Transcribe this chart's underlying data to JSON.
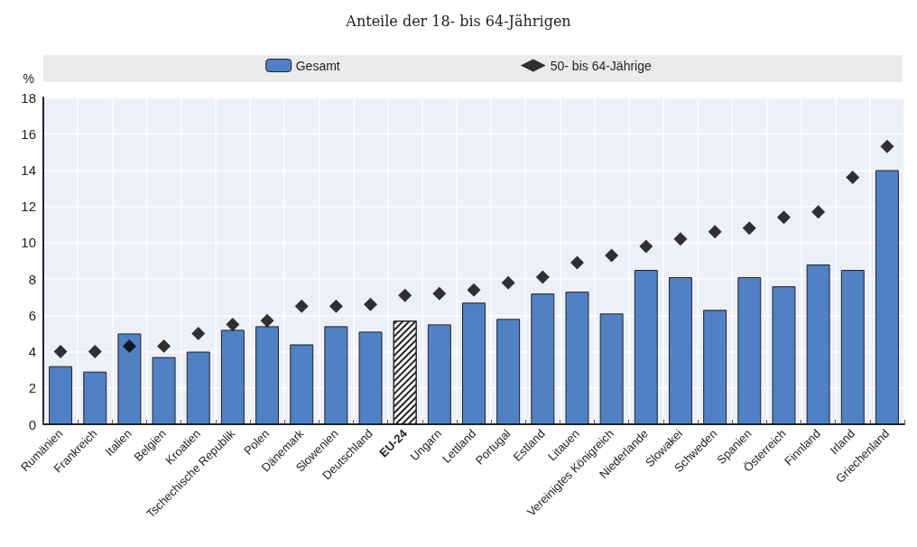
{
  "chart_data": {
    "type": "bar",
    "title": "Anteile der 18- bis 64-Jährigen",
    "ylabel": "%",
    "categories": [
      "Rumänien",
      "Frankreich",
      "Italien",
      "Belgien",
      "Kroatien",
      "Tschechische Republik",
      "Polen",
      "Dänemark",
      "Slowenien",
      "Deutschland",
      "EU-24",
      "Ungarn",
      "Lettland",
      "Portugal",
      "Estland",
      "Litauen",
      "Vereinigtes Königreich",
      "Niederlande",
      "Slowakei",
      "Schweden",
      "Spanien",
      "Österreich",
      "Finnland",
      "Irland",
      "Griechenland"
    ],
    "series": [
      {
        "name": "Gesamt",
        "color": "#4f81c4",
        "colors": [
          "#4f81c4",
          "#4f81c4",
          "#4f81c4",
          "#4f81c4",
          "#4f81c4",
          "#4f81c4",
          "#4f81c4",
          "#4f81c4",
          "#4f81c4",
          "#4f81c4",
          "#ffffff",
          "#4f81c4",
          "#4f81c4",
          "#4f81c4",
          "#4f81c4",
          "#4f81c4",
          "#4f81c4",
          "#4f81c4",
          "#4f81c4",
          "#4f81c4",
          "#4f81c4",
          "#4f81c4",
          "#4f81c4",
          "#4f81c4",
          "#4f81c4"
        ],
        "values": [
          3.2,
          2.9,
          5.0,
          3.7,
          4.0,
          5.2,
          5.4,
          4.4,
          5.4,
          5.1,
          5.7,
          5.5,
          6.7,
          5.8,
          7.2,
          7.3,
          6.1,
          8.5,
          8.1,
          6.3,
          8.1,
          7.6,
          8.8,
          8.5,
          14.0
        ]
      },
      {
        "name": "50- bis 64-Jährige",
        "type": "scatter",
        "color": "#000000",
        "marker": "diamond",
        "values": [
          4.0,
          4.0,
          4.3,
          4.3,
          5.0,
          5.5,
          5.7,
          6.5,
          6.5,
          6.6,
          7.1,
          7.2,
          7.4,
          7.8,
          8.1,
          8.9,
          9.3,
          9.8,
          10.2,
          10.6,
          10.8,
          11.4,
          11.7,
          13.6,
          15.3
        ]
      }
    ],
    "ylim": [
      0,
      18
    ],
    "yticks": [
      0,
      2,
      4,
      6,
      8,
      10,
      12,
      14,
      16,
      18
    ],
    "grid": true,
    "legend": "top"
  }
}
